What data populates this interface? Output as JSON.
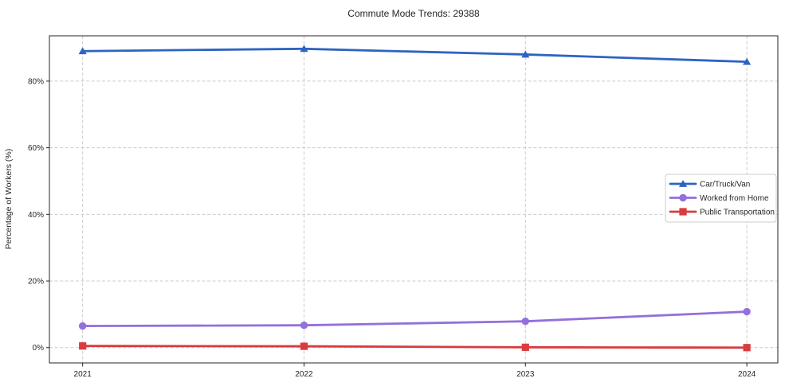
{
  "chart_data": {
    "type": "line",
    "title": "Commute Mode Trends: 29388",
    "xlabel": "",
    "ylabel": "Percentage of Workers (%)",
    "x": [
      2021,
      2022,
      2023,
      2024
    ],
    "x_tick_labels": [
      "2021",
      "2022",
      "2023",
      "2024"
    ],
    "y_ticks": [
      0,
      20,
      40,
      60,
      80
    ],
    "y_tick_labels": [
      "0%",
      "20%",
      "40%",
      "60%",
      "80%"
    ],
    "xlim": [
      2020.85,
      2024.14
    ],
    "ylim": [
      -4.6,
      93.6
    ],
    "grid": "dashed-both-axes",
    "legend_position": "center-right",
    "series": [
      {
        "name": "Car/Truck/Van",
        "marker": "triangle",
        "color": "#2d64c3",
        "values": [
          89.0,
          89.7,
          88.0,
          85.8
        ]
      },
      {
        "name": "Worked from Home",
        "marker": "circle",
        "color": "#9370db",
        "values": [
          6.5,
          6.7,
          7.9,
          10.8
        ]
      },
      {
        "name": "Public Transportation",
        "marker": "square",
        "color": "#d93b3e",
        "values": [
          0.5,
          0.4,
          0.1,
          0.0
        ]
      }
    ],
    "colors": {
      "text": "#262626",
      "grid": "#cccccc",
      "spine": "#262626",
      "legend_border": "#cccccc",
      "background": "#ffffff"
    }
  }
}
